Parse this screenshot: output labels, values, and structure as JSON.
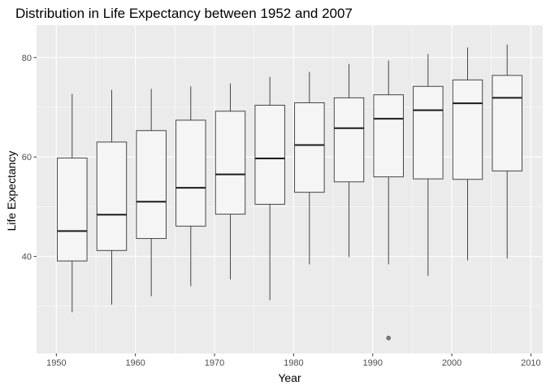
{
  "chart_data": {
    "type": "boxplot",
    "title": "Distribution in Life Expectancy between 1952 and 2007",
    "xlabel": "Year",
    "ylabel": "Life Expectancy",
    "xlim": [
      1947.5,
      2011.5
    ],
    "ylim": [
      20.5,
      86.5
    ],
    "xticks": [
      1950,
      1960,
      1970,
      1980,
      1990,
      2000,
      2010
    ],
    "yticks": [
      40,
      60,
      80
    ],
    "grid": true,
    "panel_bg": "#ebebeb",
    "grid_color": "#ffffff",
    "box_fill": "#f5f5f5",
    "box_stroke": "#333333",
    "box_width_years": 3.75,
    "boxes": [
      {
        "x": 1952,
        "min": 28.8,
        "q1": 39.1,
        "median": 45.1,
        "q3": 59.8,
        "max": 72.7,
        "outliers": []
      },
      {
        "x": 1957,
        "min": 30.3,
        "q1": 41.2,
        "median": 48.4,
        "q3": 63.0,
        "max": 73.5,
        "outliers": []
      },
      {
        "x": 1962,
        "min": 32.0,
        "q1": 43.6,
        "median": 51.0,
        "q3": 65.3,
        "max": 73.7,
        "outliers": []
      },
      {
        "x": 1967,
        "min": 34.0,
        "q1": 46.1,
        "median": 53.8,
        "q3": 67.4,
        "max": 74.2,
        "outliers": []
      },
      {
        "x": 1972,
        "min": 35.4,
        "q1": 48.5,
        "median": 56.5,
        "q3": 69.2,
        "max": 74.8,
        "outliers": []
      },
      {
        "x": 1977,
        "min": 31.2,
        "q1": 50.5,
        "median": 59.7,
        "q3": 70.4,
        "max": 76.1,
        "outliers": []
      },
      {
        "x": 1982,
        "min": 38.4,
        "q1": 52.9,
        "median": 62.4,
        "q3": 70.9,
        "max": 77.1,
        "outliers": []
      },
      {
        "x": 1987,
        "min": 39.9,
        "q1": 55.0,
        "median": 65.8,
        "q3": 71.9,
        "max": 78.7,
        "outliers": []
      },
      {
        "x": 1992,
        "min": 38.4,
        "q1": 56.0,
        "median": 67.7,
        "q3": 72.5,
        "max": 79.4,
        "outliers": [
          23.6
        ]
      },
      {
        "x": 1997,
        "min": 36.1,
        "q1": 55.6,
        "median": 69.4,
        "q3": 74.2,
        "max": 80.7,
        "outliers": []
      },
      {
        "x": 2002,
        "min": 39.2,
        "q1": 55.5,
        "median": 70.8,
        "q3": 75.5,
        "max": 82.0,
        "outliers": []
      },
      {
        "x": 2007,
        "min": 39.6,
        "q1": 57.2,
        "median": 71.9,
        "q3": 76.4,
        "max": 82.6,
        "outliers": []
      }
    ]
  }
}
